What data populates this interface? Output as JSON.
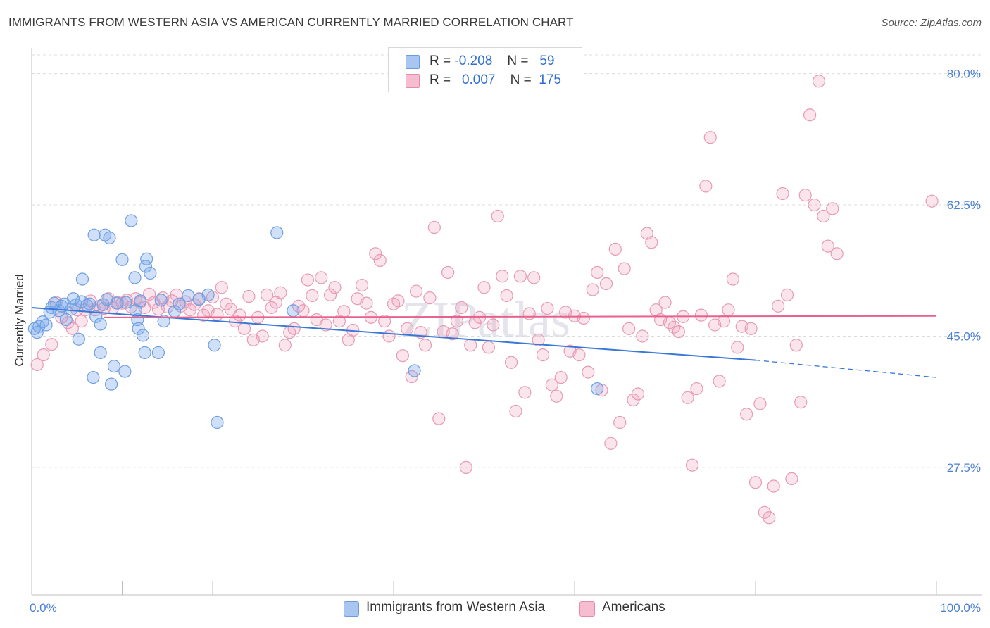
{
  "title": "IMMIGRANTS FROM WESTERN ASIA VS AMERICAN CURRENTLY MARRIED CORRELATION CHART",
  "source": "Source: ZipAtlas.com",
  "watermark": "ZIPatlas",
  "legend_top": {
    "rows": [
      {
        "r_label": "R =",
        "r_value": "-0.208",
        "n_label": "N =",
        "n_value": "59",
        "color": "#a8c6f0",
        "border": "#6b9be0"
      },
      {
        "r_label": "R =",
        "r_value": "0.007",
        "n_label": "N =",
        "n_value": "175",
        "color": "#f6bcd0",
        "border": "#e88aaa"
      }
    ]
  },
  "legend_bottom": [
    {
      "label": "Immigrants from Western Asia",
      "color": "#a8c6f0",
      "border": "#6b9be0"
    },
    {
      "label": "Americans",
      "color": "#f6bcd0",
      "border": "#e88aaa"
    }
  ],
  "chart_data": {
    "type": "scatter",
    "ylabel": "Currently Married",
    "x_tick_labels": [
      "0.0%",
      "100.0%"
    ],
    "y_tick_labels": [
      "80.0%",
      "62.5%",
      "45.0%",
      "27.5%"
    ],
    "y_ticks": [
      80.0,
      62.5,
      45.0,
      27.5
    ],
    "xlim": [
      0,
      100
    ],
    "ylim": [
      10.5,
      82.5
    ],
    "grid": true,
    "legend_position": "top-center",
    "colors": {
      "blue": "#3a78d8",
      "pink": "#e8608c",
      "blue_fill": "rgba(120,165,235,0.35)",
      "pink_fill": "rgba(240,150,180,0.25)"
    },
    "series": [
      {
        "name": "Immigrants from Western Asia",
        "color": "blue",
        "trend": {
          "x": [
            0,
            80
          ],
          "y": [
            48.8,
            41.8
          ],
          "dashed_to": [
            100,
            39.5
          ]
        },
        "points": [
          [
            0.3,
            46.0
          ],
          [
            0.6,
            45.5
          ],
          [
            0.8,
            46.3
          ],
          [
            1.2,
            46.9
          ],
          [
            1.6,
            46.5
          ],
          [
            2.0,
            48.2
          ],
          [
            2.2,
            48.8
          ],
          [
            2.5,
            49.4
          ],
          [
            3.0,
            48.4
          ],
          [
            3.3,
            49.0
          ],
          [
            3.6,
            49.3
          ],
          [
            3.8,
            47.2
          ],
          [
            4.4,
            48.6
          ],
          [
            4.6,
            50.0
          ],
          [
            4.9,
            49.2
          ],
          [
            5.2,
            44.6
          ],
          [
            5.5,
            49.6
          ],
          [
            5.6,
            52.6
          ],
          [
            6.1,
            49.1
          ],
          [
            6.4,
            49.3
          ],
          [
            6.8,
            39.5
          ],
          [
            6.9,
            58.5
          ],
          [
            7.1,
            47.6
          ],
          [
            7.6,
            46.6
          ],
          [
            7.6,
            42.8
          ],
          [
            7.9,
            49.2
          ],
          [
            8.1,
            58.5
          ],
          [
            8.3,
            49.9
          ],
          [
            8.6,
            58.1
          ],
          [
            8.8,
            38.6
          ],
          [
            9.1,
            41.0
          ],
          [
            9.4,
            49.4
          ],
          [
            10.0,
            55.2
          ],
          [
            10.3,
            40.3
          ],
          [
            10.4,
            49.5
          ],
          [
            11.0,
            60.4
          ],
          [
            11.4,
            52.8
          ],
          [
            11.5,
            48.4
          ],
          [
            11.7,
            47.2
          ],
          [
            11.8,
            46.0
          ],
          [
            12.0,
            49.7
          ],
          [
            12.3,
            45.1
          ],
          [
            12.5,
            42.8
          ],
          [
            12.6,
            54.3
          ],
          [
            12.7,
            55.3
          ],
          [
            13.1,
            53.4
          ],
          [
            14.0,
            42.8
          ],
          [
            14.3,
            49.8
          ],
          [
            14.6,
            47.0
          ],
          [
            15.8,
            48.3
          ],
          [
            16.3,
            49.3
          ],
          [
            17.3,
            50.4
          ],
          [
            18.5,
            49.9
          ],
          [
            19.5,
            50.5
          ],
          [
            20.2,
            43.8
          ],
          [
            20.5,
            33.5
          ],
          [
            27.1,
            58.8
          ],
          [
            28.9,
            48.4
          ],
          [
            42.3,
            40.4
          ],
          [
            62.5,
            38.0
          ]
        ]
      },
      {
        "name": "Americans",
        "color": "pink",
        "trend": {
          "x": [
            8,
            100
          ],
          "y": [
            47.5,
            47.7
          ]
        },
        "points": [
          [
            0.6,
            41.2
          ],
          [
            1.3,
            42.5
          ],
          [
            2.2,
            43.9
          ],
          [
            2.7,
            49.5
          ],
          [
            3.3,
            47.5
          ],
          [
            4.0,
            46.8
          ],
          [
            4.5,
            46.0
          ],
          [
            5.0,
            48.5
          ],
          [
            5.5,
            47.0
          ],
          [
            5.9,
            48.5
          ],
          [
            6.5,
            49.7
          ],
          [
            7.0,
            48.5
          ],
          [
            7.5,
            49.0
          ],
          [
            8.0,
            48.7
          ],
          [
            8.5,
            50.0
          ],
          [
            9.0,
            48.8
          ],
          [
            9.5,
            49.5
          ],
          [
            10.0,
            49.4
          ],
          [
            10.5,
            49.8
          ],
          [
            11.0,
            48.9
          ],
          [
            11.5,
            50.0
          ],
          [
            12.0,
            49.5
          ],
          [
            12.5,
            48.8
          ],
          [
            13.0,
            50.6
          ],
          [
            13.5,
            49.5
          ],
          [
            14.0,
            48.6
          ],
          [
            14.5,
            50.1
          ],
          [
            15.0,
            48.9
          ],
          [
            15.5,
            49.7
          ],
          [
            16.0,
            50.5
          ],
          [
            16.5,
            49.0
          ],
          [
            17.0,
            49.6
          ],
          [
            17.5,
            48.5
          ],
          [
            18.0,
            49.2
          ],
          [
            18.5,
            50.0
          ],
          [
            19.0,
            47.8
          ],
          [
            19.5,
            48.4
          ],
          [
            20.0,
            50.2
          ],
          [
            20.5,
            47.9
          ],
          [
            21.0,
            51.5
          ],
          [
            21.5,
            49.3
          ],
          [
            22.0,
            48.6
          ],
          [
            22.5,
            47.0
          ],
          [
            23.0,
            47.8
          ],
          [
            23.5,
            46.0
          ],
          [
            24.0,
            50.3
          ],
          [
            24.5,
            44.5
          ],
          [
            25.0,
            47.5
          ],
          [
            25.5,
            45.0
          ],
          [
            26.0,
            50.5
          ],
          [
            26.5,
            48.8
          ],
          [
            27.0,
            49.5
          ],
          [
            27.5,
            50.8
          ],
          [
            28.0,
            43.8
          ],
          [
            28.5,
            45.5
          ],
          [
            29.0,
            46.0
          ],
          [
            29.5,
            49.0
          ],
          [
            30.0,
            48.4
          ],
          [
            30.5,
            52.5
          ],
          [
            31.0,
            50.4
          ],
          [
            31.5,
            47.2
          ],
          [
            32.0,
            52.8
          ],
          [
            32.5,
            46.5
          ],
          [
            33.0,
            50.5
          ],
          [
            33.5,
            51.5
          ],
          [
            34.0,
            47.0
          ],
          [
            34.5,
            48.3
          ],
          [
            35.0,
            44.5
          ],
          [
            35.5,
            45.8
          ],
          [
            36.0,
            50.0
          ],
          [
            36.5,
            51.8
          ],
          [
            37.0,
            49.4
          ],
          [
            37.5,
            47.5
          ],
          [
            38.0,
            56.0
          ],
          [
            38.5,
            55.1
          ],
          [
            39.0,
            47.0
          ],
          [
            39.5,
            45.0
          ],
          [
            40.0,
            49.3
          ],
          [
            40.5,
            49.7
          ],
          [
            41.0,
            42.4
          ],
          [
            41.5,
            46.0
          ],
          [
            42.0,
            39.6
          ],
          [
            42.5,
            51.0
          ],
          [
            43.0,
            45.5
          ],
          [
            43.5,
            43.8
          ],
          [
            44.0,
            50.1
          ],
          [
            44.5,
            59.5
          ],
          [
            45.0,
            34.0
          ],
          [
            45.5,
            45.6
          ],
          [
            46.0,
            53.5
          ],
          [
            46.5,
            45.3
          ],
          [
            47.0,
            47.0
          ],
          [
            47.5,
            48.8
          ],
          [
            48.0,
            27.5
          ],
          [
            48.5,
            43.8
          ],
          [
            49.0,
            46.8
          ],
          [
            49.5,
            47.5
          ],
          [
            50.0,
            51.5
          ],
          [
            50.5,
            43.5
          ],
          [
            51.0,
            46.5
          ],
          [
            51.5,
            61.0
          ],
          [
            52.0,
            53.0
          ],
          [
            52.5,
            50.4
          ],
          [
            53.0,
            41.5
          ],
          [
            53.5,
            35.0
          ],
          [
            54.0,
            53.0
          ],
          [
            54.5,
            37.5
          ],
          [
            55.0,
            48.0
          ],
          [
            55.5,
            52.8
          ],
          [
            56.0,
            44.5
          ],
          [
            56.5,
            42.5
          ],
          [
            57.0,
            48.7
          ],
          [
            57.5,
            38.5
          ],
          [
            58.0,
            37.0
          ],
          [
            58.5,
            39.5
          ],
          [
            59.0,
            48.2
          ],
          [
            59.5,
            43.0
          ],
          [
            60.0,
            47.7
          ],
          [
            60.5,
            42.5
          ],
          [
            61.0,
            47.4
          ],
          [
            61.5,
            40.2
          ],
          [
            62.0,
            51.2
          ],
          [
            62.5,
            53.5
          ],
          [
            63.0,
            37.8
          ],
          [
            63.5,
            52.0
          ],
          [
            64.0,
            30.7
          ],
          [
            64.5,
            56.6
          ],
          [
            65.0,
            33.5
          ],
          [
            65.5,
            54.0
          ],
          [
            66.0,
            46.0
          ],
          [
            66.5,
            36.5
          ],
          [
            67.0,
            37.3
          ],
          [
            67.5,
            45.0
          ],
          [
            68.0,
            58.7
          ],
          [
            68.5,
            57.5
          ],
          [
            69.0,
            48.5
          ],
          [
            69.5,
            47.2
          ],
          [
            70.0,
            49.5
          ],
          [
            70.5,
            46.8
          ],
          [
            71.0,
            46.2
          ],
          [
            71.5,
            45.6
          ],
          [
            72.0,
            47.6
          ],
          [
            72.5,
            36.8
          ],
          [
            73.0,
            27.8
          ],
          [
            73.5,
            38.0
          ],
          [
            74.0,
            47.8
          ],
          [
            74.5,
            65.0
          ],
          [
            75.0,
            71.5
          ],
          [
            75.5,
            46.5
          ],
          [
            76.0,
            39.0
          ],
          [
            76.5,
            47.0
          ],
          [
            77.0,
            48.5
          ],
          [
            77.5,
            52.6
          ],
          [
            78.0,
            43.5
          ],
          [
            78.5,
            46.3
          ],
          [
            79.0,
            34.6
          ],
          [
            79.5,
            46.0
          ],
          [
            80.0,
            25.5
          ],
          [
            80.5,
            36.0
          ],
          [
            81.0,
            21.5
          ],
          [
            81.5,
            20.8
          ],
          [
            82.0,
            25.0
          ],
          [
            82.5,
            49.0
          ],
          [
            83.0,
            64.0
          ],
          [
            83.5,
            50.5
          ],
          [
            84.0,
            26.0
          ],
          [
            84.5,
            43.8
          ],
          [
            85.0,
            36.2
          ],
          [
            85.5,
            63.8
          ],
          [
            86.0,
            74.5
          ],
          [
            86.5,
            62.5
          ],
          [
            87.0,
            79.0
          ],
          [
            87.5,
            61.0
          ],
          [
            88.0,
            57.0
          ],
          [
            88.5,
            62.0
          ],
          [
            89.0,
            56.0
          ],
          [
            99.5,
            63.0
          ]
        ]
      }
    ]
  }
}
